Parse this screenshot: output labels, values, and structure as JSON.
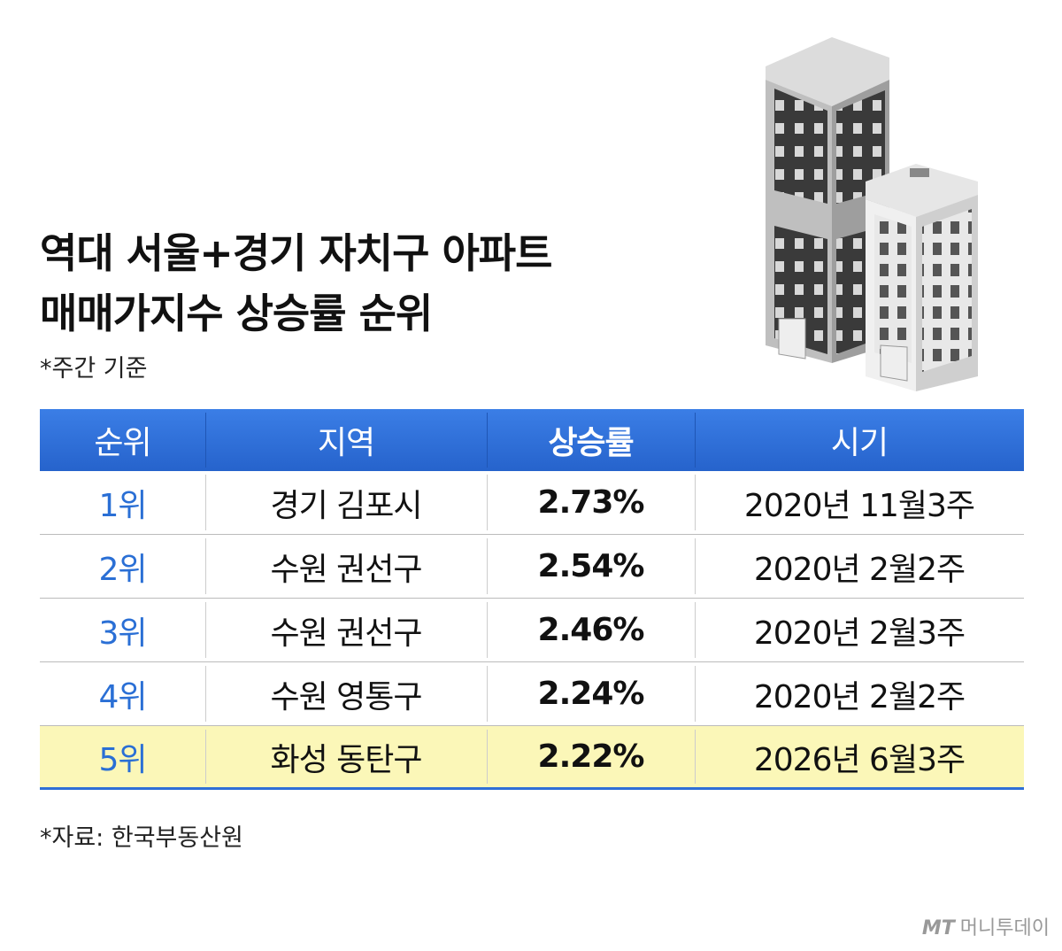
{
  "title": [
    "역대 서울+경기 자치구 아파트",
    "매매가지수 상승률 순위"
  ],
  "note": "*주간 기준",
  "table": {
    "header": [
      "순위",
      "지역",
      "상승률",
      "시기"
    ],
    "rows": [
      [
        "1위",
        "경기 김포시",
        "2.73%",
        "2020년 11월3주"
      ],
      [
        "2위",
        "수원 권선구",
        "2.54%",
        "2020년 2월2주"
      ],
      [
        "3위",
        "수원 권선구",
        "2.46%",
        "2020년 2월3주"
      ],
      [
        "4위",
        "수원 영통구",
        "2.24%",
        "2020년 2월2주"
      ],
      [
        "5위",
        "화성 동탄구",
        "2.22%",
        "2026년 6월3주"
      ]
    ]
  },
  "source": "*자료: 한국부동산원",
  "logo": {
    "mark": "MT",
    "name": "머니투데이"
  }
}
